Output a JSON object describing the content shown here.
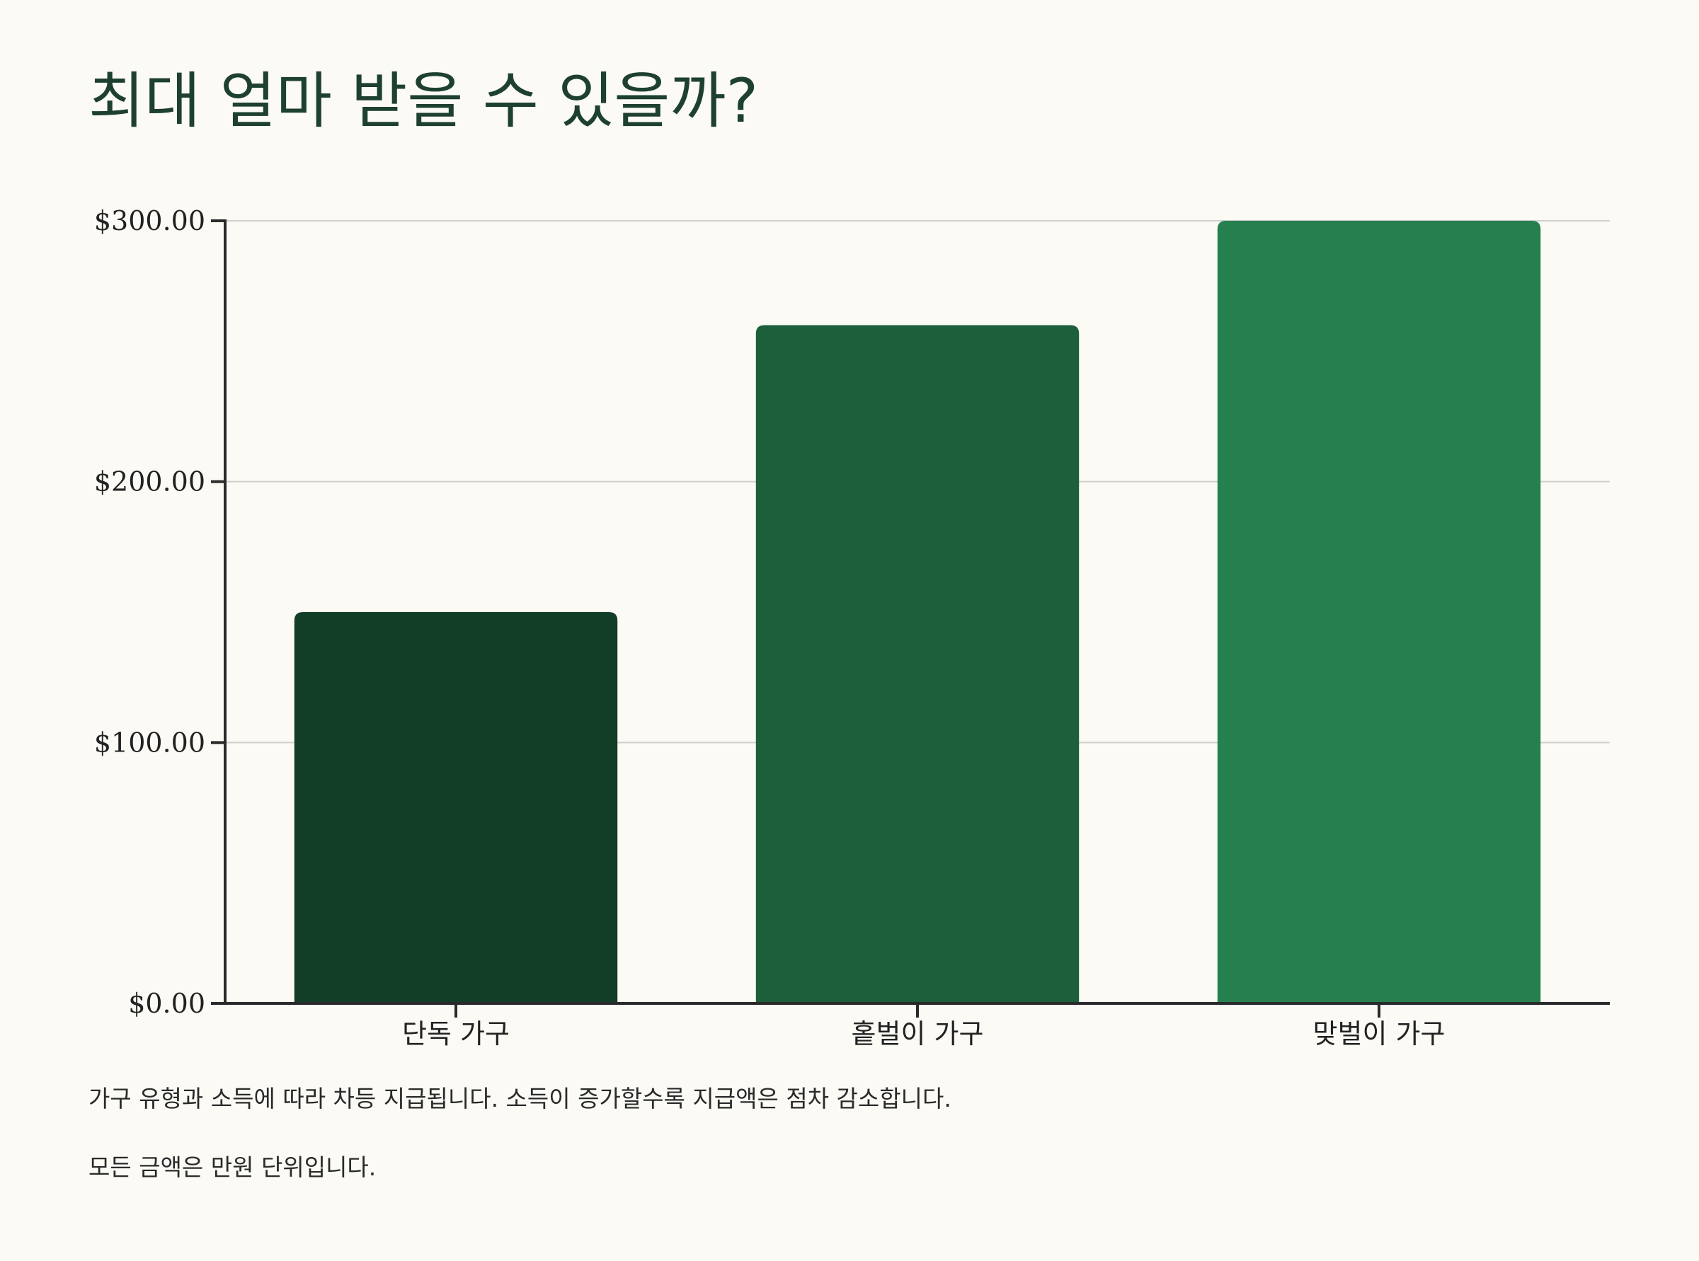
{
  "chart_data": {
    "type": "bar",
    "title": "최대 얼마 받을 수 있을까?",
    "categories": [
      "단독 가구",
      "홑벌이 가구",
      "맞벌이 가구"
    ],
    "values": [
      150,
      260,
      300
    ],
    "ylim": [
      0,
      300
    ],
    "yticks": [
      0,
      100,
      200,
      300
    ],
    "ytick_labels": [
      "$0.00",
      "$100.00",
      "$200.00",
      "$300.00"
    ],
    "xlabel": "",
    "ylabel": "",
    "grid": true,
    "bar_colors": [
      "#123d27",
      "#1d5e3b",
      "#267f4e"
    ]
  },
  "notes": {
    "line1": "가구 유형과 소득에 따라 차등 지급됩니다. 소득이 증가할수록 지급액은 점차 감소합니다.",
    "line2": "모든 금액은 만원 단위입니다."
  }
}
